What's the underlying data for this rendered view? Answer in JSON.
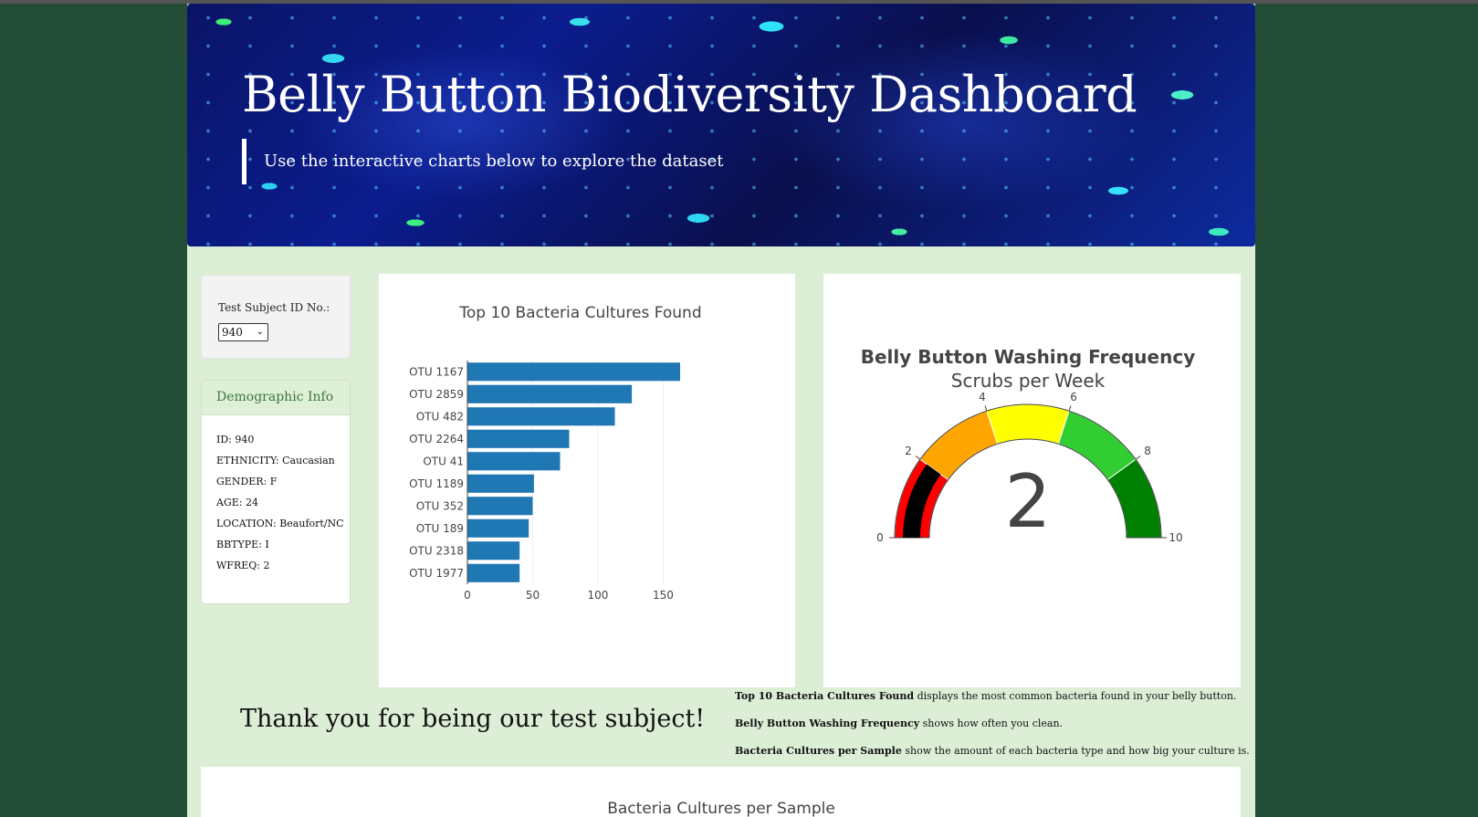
{
  "header": {
    "title": "Belly Button Biodiversity Dashboard",
    "subtitle": "Use the interactive charts below to explore the dataset"
  },
  "selector": {
    "label": "Test Subject ID No.:",
    "selected": "940"
  },
  "demographics": {
    "title": "Demographic Info",
    "rows": [
      "ID: 940",
      "ETHNICITY: Caucasian",
      "GENDER: F",
      "AGE: 24",
      "LOCATION: Beaufort/NC",
      "BBTYPE: I",
      "WFREQ: 2"
    ]
  },
  "thanks": "Thank you for being our test subject!",
  "notes": [
    {
      "bold": "Top 10 Bacteria Cultures Found",
      "text": " displays the most common bacteria found in your belly button."
    },
    {
      "bold": "Belly Button Washing Frequency",
      "text": " shows how often you clean."
    },
    {
      "bold": "Bacteria Cultures per Sample",
      "text": " show the amount of each bacteria type and how big your culture is."
    }
  ],
  "bubble": {
    "title": "Bacteria Cultures per Sample"
  },
  "colors": {
    "bar": "#1f77b4",
    "panel_header": "#3c763d",
    "page_bg": "#dceed6",
    "body_bg": "#234d37"
  },
  "chart_data": [
    {
      "type": "bar",
      "orientation": "horizontal",
      "title": "Top 10 Bacteria Cultures Found",
      "categories": [
        "OTU 1167",
        "OTU 2859",
        "OTU 482",
        "OTU 2264",
        "OTU 41",
        "OTU 1189",
        "OTU 352",
        "OTU 189",
        "OTU 2318",
        "OTU 1977"
      ],
      "values": [
        163,
        126,
        113,
        78,
        71,
        51,
        50,
        47,
        40,
        40
      ],
      "xticks": [
        0,
        50,
        100,
        150
      ],
      "xlim": [
        0,
        170
      ],
      "grid": true
    },
    {
      "type": "gauge",
      "title": "Belly Button Washing Frequency",
      "subtitle": "Scrubs per Week",
      "value": 2,
      "range": [
        0,
        10
      ],
      "ticks": [
        0,
        2,
        4,
        6,
        8,
        10
      ],
      "bands": [
        {
          "range": [
            0,
            2
          ],
          "color": "#ff0000"
        },
        {
          "range": [
            2,
            4
          ],
          "color": "#ffa500"
        },
        {
          "range": [
            4,
            6
          ],
          "color": "#ffff00"
        },
        {
          "range": [
            6,
            8
          ],
          "color": "#32cd32"
        },
        {
          "range": [
            8,
            10
          ],
          "color": "#008000"
        }
      ],
      "bar_color": "#000000"
    }
  ]
}
